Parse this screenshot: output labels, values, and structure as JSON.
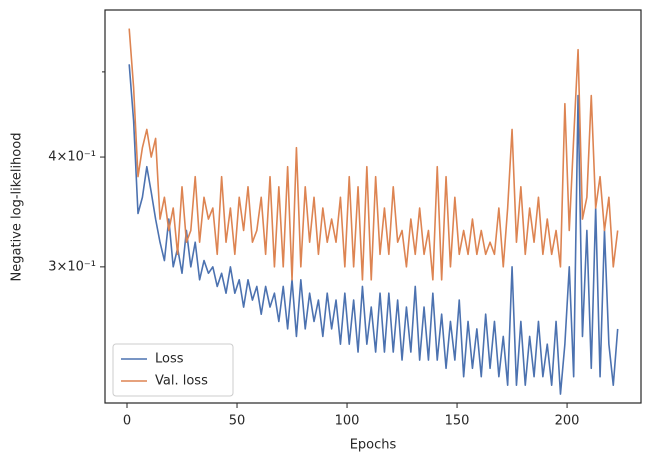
{
  "chart_data": {
    "type": "line",
    "xlabel": "Epochs",
    "ylabel": "Negative log-likelihood",
    "x": [
      1,
      3,
      5,
      7,
      9,
      11,
      13,
      15,
      17,
      19,
      21,
      23,
      25,
      27,
      29,
      31,
      33,
      35,
      37,
      39,
      41,
      43,
      45,
      47,
      49,
      51,
      53,
      55,
      57,
      59,
      61,
      63,
      65,
      67,
      69,
      71,
      73,
      75,
      77,
      79,
      81,
      83,
      85,
      87,
      89,
      91,
      93,
      95,
      97,
      99,
      101,
      103,
      105,
      107,
      109,
      111,
      113,
      115,
      117,
      119,
      121,
      123,
      125,
      127,
      129,
      131,
      133,
      135,
      137,
      139,
      141,
      143,
      145,
      147,
      149,
      151,
      153,
      155,
      157,
      159,
      161,
      163,
      165,
      167,
      169,
      171,
      173,
      175,
      177,
      179,
      181,
      183,
      185,
      187,
      189,
      191,
      193,
      195,
      197,
      199,
      201,
      203,
      205,
      207,
      209,
      211,
      213,
      215,
      217,
      219,
      221,
      223
    ],
    "series": [
      {
        "name": "Loss",
        "color": "#4c72b0",
        "values": [
          0.51,
          0.44,
          0.345,
          0.36,
          0.39,
          0.365,
          0.34,
          0.32,
          0.305,
          0.34,
          0.3,
          0.315,
          0.295,
          0.33,
          0.3,
          0.32,
          0.29,
          0.305,
          0.295,
          0.3,
          0.285,
          0.295,
          0.28,
          0.3,
          0.28,
          0.29,
          0.27,
          0.29,
          0.275,
          0.285,
          0.265,
          0.285,
          0.27,
          0.28,
          0.26,
          0.285,
          0.255,
          0.29,
          0.25,
          0.29,
          0.255,
          0.28,
          0.26,
          0.275,
          0.25,
          0.28,
          0.255,
          0.275,
          0.245,
          0.28,
          0.245,
          0.275,
          0.24,
          0.285,
          0.245,
          0.27,
          0.24,
          0.28,
          0.24,
          0.28,
          0.24,
          0.275,
          0.235,
          0.27,
          0.24,
          0.285,
          0.235,
          0.27,
          0.235,
          0.28,
          0.235,
          0.265,
          0.23,
          0.26,
          0.235,
          0.275,
          0.225,
          0.26,
          0.23,
          0.255,
          0.225,
          0.265,
          0.23,
          0.26,
          0.225,
          0.25,
          0.22,
          0.3,
          0.22,
          0.26,
          0.22,
          0.25,
          0.225,
          0.26,
          0.225,
          0.245,
          0.22,
          0.26,
          0.215,
          0.245,
          0.3,
          0.225,
          0.47,
          0.25,
          0.33,
          0.23,
          0.35,
          0.225,
          0.33,
          0.245,
          0.22,
          0.255
        ]
      },
      {
        "name": "Val. loss",
        "color": "#dd8452",
        "values": [
          0.56,
          0.48,
          0.38,
          0.41,
          0.43,
          0.4,
          0.42,
          0.34,
          0.36,
          0.33,
          0.35,
          0.31,
          0.37,
          0.32,
          0.33,
          0.38,
          0.32,
          0.36,
          0.34,
          0.35,
          0.31,
          0.38,
          0.32,
          0.35,
          0.31,
          0.36,
          0.33,
          0.37,
          0.32,
          0.33,
          0.36,
          0.31,
          0.38,
          0.3,
          0.37,
          0.3,
          0.39,
          0.29,
          0.41,
          0.3,
          0.37,
          0.32,
          0.36,
          0.31,
          0.35,
          0.32,
          0.34,
          0.32,
          0.36,
          0.3,
          0.38,
          0.3,
          0.37,
          0.29,
          0.39,
          0.29,
          0.38,
          0.31,
          0.35,
          0.31,
          0.37,
          0.32,
          0.33,
          0.3,
          0.34,
          0.31,
          0.35,
          0.31,
          0.33,
          0.29,
          0.39,
          0.29,
          0.38,
          0.3,
          0.36,
          0.31,
          0.33,
          0.31,
          0.34,
          0.31,
          0.33,
          0.31,
          0.32,
          0.31,
          0.35,
          0.3,
          0.35,
          0.43,
          0.32,
          0.37,
          0.31,
          0.35,
          0.32,
          0.36,
          0.31,
          0.34,
          0.31,
          0.33,
          0.3,
          0.46,
          0.33,
          0.42,
          0.53,
          0.34,
          0.36,
          0.47,
          0.35,
          0.38,
          0.33,
          0.36,
          0.3,
          0.33
        ]
      }
    ],
    "xlim": [
      -10,
      233.6
    ],
    "xticks": [
      0,
      50,
      100,
      150,
      200
    ],
    "ylim": [
      0.21,
      0.588
    ],
    "log_y": true,
    "yticks": [
      {
        "value": 0.3,
        "label": "3×10⁻¹"
      },
      {
        "value": 0.4,
        "label": "4×10⁻¹"
      }
    ],
    "yminorticks": [
      0.5
    ],
    "legend": "lower left"
  }
}
